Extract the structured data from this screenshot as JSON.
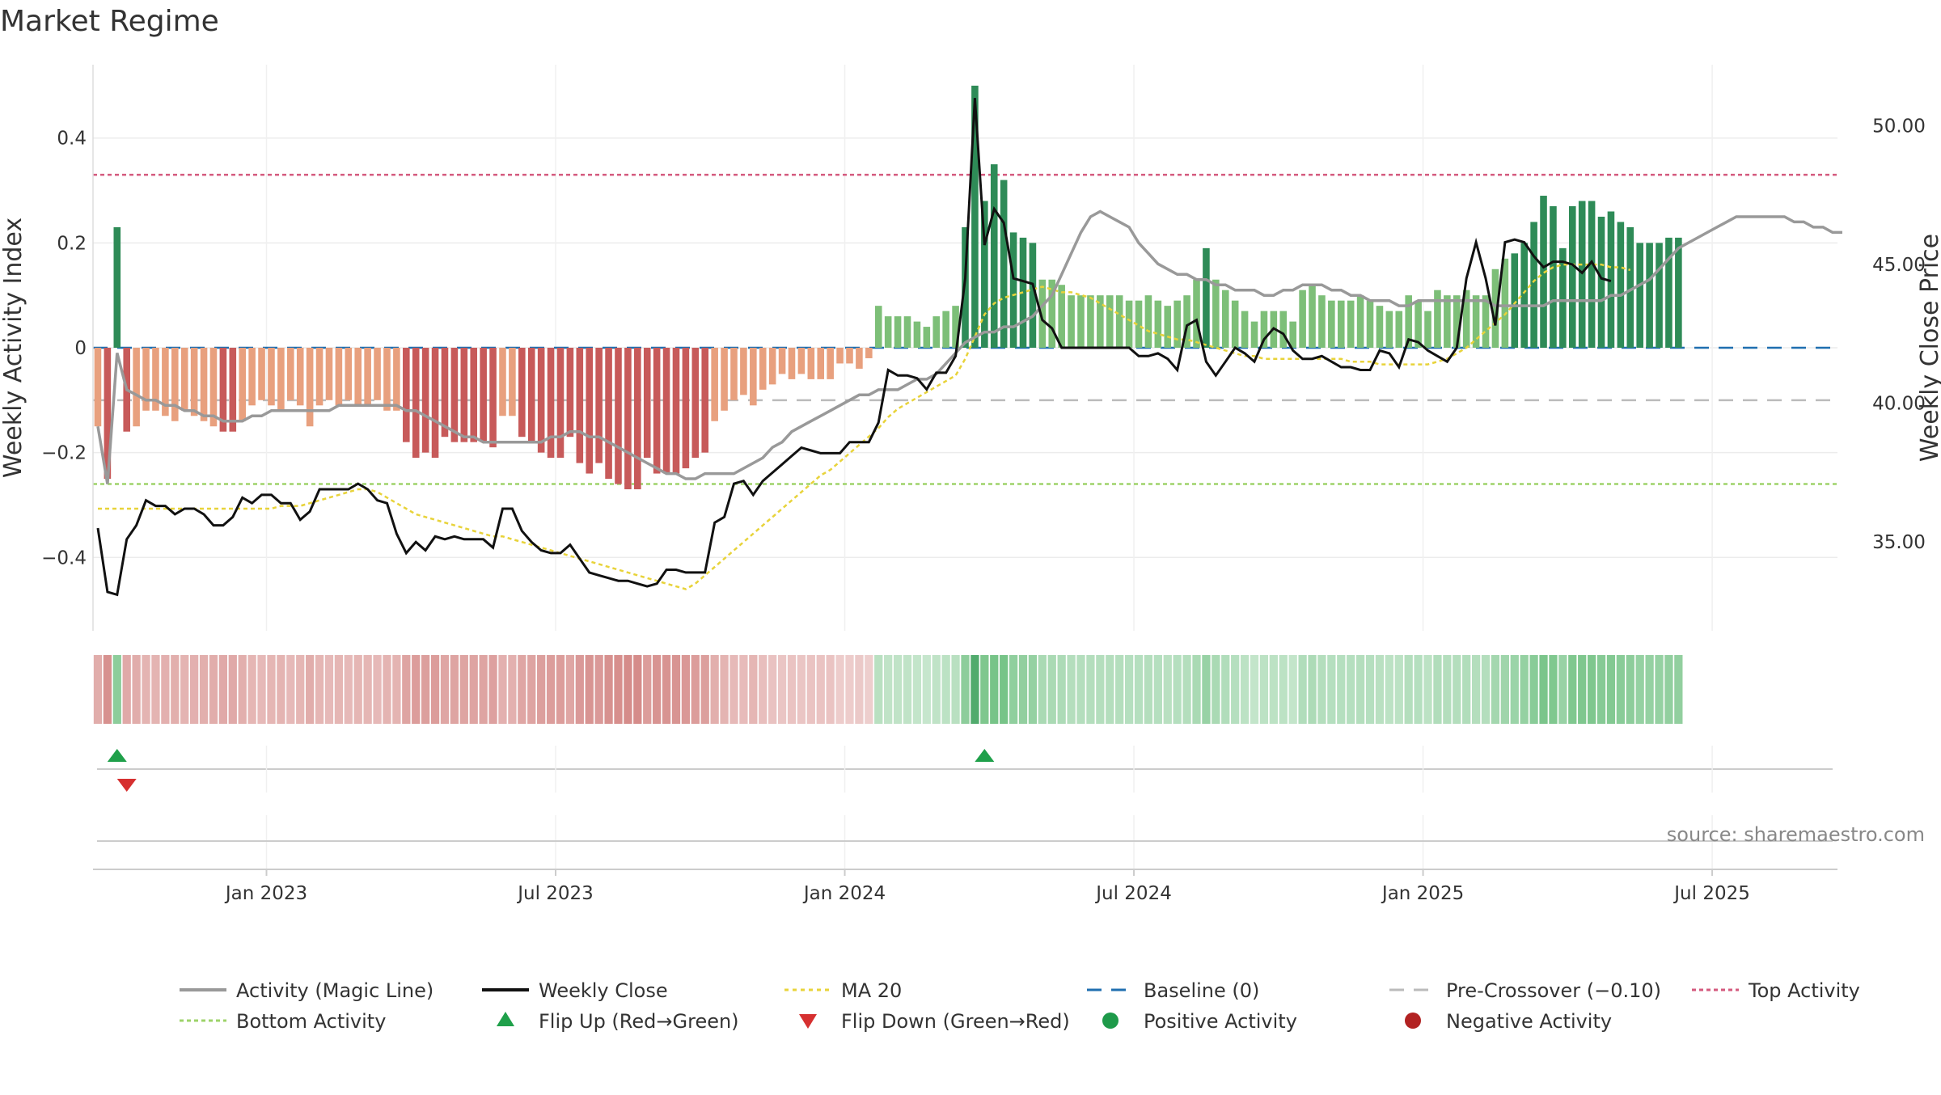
{
  "chart_data": {
    "type": "bar",
    "title": "Market Regime",
    "ylabel_left": "Weekly Activity Index",
    "ylabel_right": "Weekly Close Price",
    "yticks_left": [
      "0.4",
      "0.2",
      "0",
      "−0.2",
      "−0.4"
    ],
    "yticks_left_values": [
      0.4,
      0.2,
      0,
      -0.2,
      -0.4
    ],
    "ylim_left": [
      -0.54,
      0.54
    ],
    "yticks_right": [
      "50.00",
      "45.00",
      "40.00",
      "35.00"
    ],
    "yticks_right_values": [
      50,
      45,
      40,
      35
    ],
    "ylim_right": [
      31.8,
      52.2
    ],
    "xticks": [
      "Jan 2023",
      "Jul 2023",
      "Jan 2024",
      "Jul 2024",
      "Jan 2025",
      "Jul 2025"
    ],
    "xticks_weeks": [
      17.5,
      47.5,
      77.5,
      107.5,
      137.5,
      167.5
    ],
    "x_range_weeks": [
      -0.5,
      180.5
    ],
    "grid": true,
    "legend_position": "bottom",
    "source": "source: sharemaestro.com",
    "reference_lines": {
      "top_activity": 0.33,
      "bottom_activity": -0.26,
      "pre_crossover": -0.1,
      "baseline": 0
    },
    "series": [
      {
        "name": "Activity (Magic Line)",
        "role": "magic",
        "color": "#999999",
        "values": [
          -0.15,
          -0.26,
          -0.01,
          -0.08,
          -0.09,
          -0.1,
          -0.1,
          -0.11,
          -0.11,
          -0.12,
          -0.12,
          -0.13,
          -0.13,
          -0.14,
          -0.14,
          -0.14,
          -0.13,
          -0.13,
          -0.12,
          -0.12,
          -0.12,
          -0.12,
          -0.12,
          -0.12,
          -0.12,
          -0.11,
          -0.11,
          -0.11,
          -0.11,
          -0.11,
          -0.11,
          -0.11,
          -0.12,
          -0.12,
          -0.13,
          -0.14,
          -0.15,
          -0.16,
          -0.17,
          -0.17,
          -0.18,
          -0.18,
          -0.18,
          -0.18,
          -0.18,
          -0.18,
          -0.18,
          -0.17,
          -0.17,
          -0.16,
          -0.16,
          -0.17,
          -0.17,
          -0.18,
          -0.19,
          -0.2,
          -0.21,
          -0.22,
          -0.23,
          -0.24,
          -0.24,
          -0.25,
          -0.25,
          -0.24,
          -0.24,
          -0.24,
          -0.24,
          -0.23,
          -0.22,
          -0.21,
          -0.19,
          -0.18,
          -0.16,
          -0.15,
          -0.14,
          -0.13,
          -0.12,
          -0.11,
          -0.1,
          -0.09,
          -0.09,
          -0.08,
          -0.08,
          -0.08,
          -0.07,
          -0.06,
          -0.06,
          -0.05,
          -0.03,
          -0.01,
          0.01,
          0.02,
          0.03,
          0.03,
          0.04,
          0.04,
          0.05,
          0.06,
          0.08,
          0.1,
          0.14,
          0.18,
          0.22,
          0.25,
          0.26,
          0.25,
          0.24,
          0.23,
          0.2,
          0.18,
          0.16,
          0.15,
          0.14,
          0.14,
          0.13,
          0.13,
          0.12,
          0.12,
          0.11,
          0.11,
          0.11,
          0.1,
          0.1,
          0.11,
          0.11,
          0.12,
          0.12,
          0.12,
          0.11,
          0.11,
          0.1,
          0.1,
          0.09,
          0.09,
          0.09,
          0.08,
          0.08,
          0.09,
          0.09,
          0.09,
          0.09,
          0.09,
          0.09,
          0.09,
          0.09,
          0.08,
          0.08,
          0.08,
          0.08,
          0.08,
          0.08,
          0.09,
          0.09,
          0.09,
          0.09,
          0.09,
          0.09,
          0.1,
          0.1,
          0.11,
          0.12,
          0.13,
          0.15,
          0.17,
          0.19,
          0.2,
          0.21,
          0.22,
          0.23,
          0.24,
          0.25,
          0.25,
          0.25,
          0.25,
          0.25,
          0.25,
          0.24,
          0.24,
          0.23,
          0.23,
          0.22,
          0.22
        ]
      },
      {
        "name": "Weekly Close",
        "role": "close",
        "color": "#111111",
        "values": [
          35.5,
          33.2,
          33.1,
          35.1,
          35.6,
          36.5,
          36.3,
          36.3,
          36.0,
          36.2,
          36.2,
          36.0,
          35.6,
          35.6,
          35.9,
          36.6,
          36.4,
          36.7,
          36.7,
          36.4,
          36.4,
          35.8,
          36.1,
          36.9,
          36.9,
          36.9,
          36.9,
          37.1,
          36.9,
          36.5,
          36.4,
          35.3,
          34.6,
          35.0,
          34.7,
          35.2,
          35.1,
          35.2,
          35.1,
          35.1,
          35.1,
          34.8,
          36.2,
          36.2,
          35.4,
          35.0,
          34.7,
          34.6,
          34.6,
          34.9,
          34.4,
          33.9,
          33.8,
          33.7,
          33.6,
          33.6,
          33.5,
          33.4,
          33.5,
          34.0,
          34.0,
          33.9,
          33.9,
          33.9,
          35.7,
          35.9,
          37.1,
          37.2,
          36.7,
          37.2,
          37.5,
          37.8,
          38.1,
          38.4,
          38.3,
          38.2,
          38.2,
          38.2,
          38.6,
          38.6,
          38.6,
          39.3,
          41.2,
          41.0,
          41.0,
          40.9,
          40.5,
          41.1,
          41.1,
          41.7,
          44.5,
          51.0,
          45.7,
          47.0,
          46.5,
          44.5,
          44.4,
          44.3,
          43.0,
          42.7,
          42.0,
          42.0,
          42.0,
          42.0,
          42.0,
          42.0,
          42.0,
          42.0,
          41.7,
          41.7,
          41.8,
          41.6,
          41.2,
          42.8,
          43.0,
          41.5,
          41.0,
          41.5,
          42.0,
          41.8,
          41.5,
          42.3,
          42.7,
          42.5,
          41.9,
          41.6,
          41.6,
          41.7,
          41.5,
          41.3,
          41.3,
          41.2,
          41.2,
          41.9,
          41.8,
          41.3,
          42.3,
          42.2,
          41.9,
          41.7,
          41.5,
          42.0,
          44.5,
          45.8,
          44.5,
          42.8,
          45.8,
          45.9,
          45.8,
          45.3,
          44.9,
          45.1,
          45.1,
          45.0,
          44.7,
          45.1,
          44.5,
          44.4
        ]
      },
      {
        "name": "MA 20",
        "role": "ma",
        "color": "#e8d33a",
        "values": [
          36.2,
          36.2,
          36.2,
          36.2,
          36.2,
          36.2,
          36.2,
          36.2,
          36.2,
          36.2,
          36.2,
          36.2,
          36.2,
          36.2,
          36.2,
          36.2,
          36.2,
          36.2,
          36.2,
          36.3,
          36.3,
          36.3,
          36.4,
          36.5,
          36.6,
          36.7,
          36.8,
          36.9,
          36.9,
          36.8,
          36.6,
          36.4,
          36.2,
          36.0,
          35.9,
          35.8,
          35.7,
          35.6,
          35.5,
          35.4,
          35.3,
          35.2,
          35.2,
          35.1,
          35.0,
          34.9,
          34.8,
          34.7,
          34.6,
          34.5,
          34.4,
          34.3,
          34.2,
          34.1,
          34.0,
          33.9,
          33.8,
          33.7,
          33.6,
          33.5,
          33.4,
          33.3,
          33.5,
          33.8,
          34.1,
          34.4,
          34.7,
          35.0,
          35.3,
          35.6,
          35.9,
          36.2,
          36.5,
          36.8,
          37.1,
          37.4,
          37.6,
          37.9,
          38.2,
          38.5,
          38.8,
          39.1,
          39.5,
          39.8,
          40.0,
          40.2,
          40.4,
          40.6,
          40.8,
          41.0,
          41.6,
          42.4,
          43.2,
          43.6,
          43.8,
          43.9,
          44.0,
          44.1,
          44.2,
          44.1,
          44.0,
          44.0,
          43.9,
          43.8,
          43.6,
          43.4,
          43.2,
          43.0,
          42.8,
          42.6,
          42.5,
          42.4,
          42.3,
          42.3,
          42.2,
          42.1,
          42.0,
          41.9,
          41.8,
          41.7,
          41.7,
          41.6,
          41.6,
          41.6,
          41.6,
          41.6,
          41.6,
          41.6,
          41.6,
          41.6,
          41.5,
          41.5,
          41.5,
          41.4,
          41.4,
          41.4,
          41.4,
          41.4,
          41.4,
          41.5,
          41.6,
          41.8,
          42.0,
          42.3,
          42.6,
          42.9,
          43.2,
          43.6,
          44.0,
          44.4,
          44.7,
          44.9,
          45.0,
          45.0,
          45.0,
          45.0,
          45.0,
          44.9,
          44.9,
          44.8
        ]
      },
      {
        "name": "Weekly Activity Index",
        "role": "bars",
        "values": [
          -0.15,
          -0.25,
          0.23,
          -0.16,
          -0.15,
          -0.12,
          -0.12,
          -0.13,
          -0.14,
          -0.12,
          -0.13,
          -0.14,
          -0.15,
          -0.16,
          -0.16,
          -0.14,
          -0.11,
          -0.1,
          -0.11,
          -0.12,
          -0.1,
          -0.11,
          -0.15,
          -0.11,
          -0.1,
          -0.11,
          -0.1,
          -0.11,
          -0.11,
          -0.1,
          -0.12,
          -0.12,
          -0.18,
          -0.21,
          -0.2,
          -0.21,
          -0.17,
          -0.18,
          -0.18,
          -0.18,
          -0.18,
          -0.19,
          -0.13,
          -0.13,
          -0.17,
          -0.18,
          -0.2,
          -0.21,
          -0.21,
          -0.17,
          -0.22,
          -0.24,
          -0.22,
          -0.25,
          -0.26,
          -0.27,
          -0.27,
          -0.21,
          -0.24,
          -0.24,
          -0.24,
          -0.23,
          -0.21,
          -0.2,
          -0.14,
          -0.12,
          -0.1,
          -0.09,
          -0.11,
          -0.08,
          -0.07,
          -0.05,
          -0.06,
          -0.05,
          -0.06,
          -0.06,
          -0.06,
          -0.03,
          -0.03,
          -0.04,
          -0.02,
          0.08,
          0.06,
          0.06,
          0.06,
          0.05,
          0.04,
          0.06,
          0.07,
          0.08,
          0.23,
          0.5,
          0.28,
          0.35,
          0.32,
          0.22,
          0.21,
          0.2,
          0.13,
          0.13,
          0.12,
          0.1,
          0.1,
          0.1,
          0.1,
          0.1,
          0.1,
          0.09,
          0.09,
          0.1,
          0.09,
          0.08,
          0.09,
          0.1,
          0.13,
          0.19,
          0.13,
          0.11,
          0.09,
          0.07,
          0.05,
          0.07,
          0.07,
          0.07,
          0.05,
          0.11,
          0.12,
          0.1,
          0.09,
          0.09,
          0.09,
          0.1,
          0.09,
          0.08,
          0.07,
          0.07,
          0.1,
          0.09,
          0.07,
          0.11,
          0.1,
          0.1,
          0.11,
          0.1,
          0.1,
          0.15,
          0.17,
          0.18,
          0.2,
          0.24,
          0.29,
          0.27,
          0.19,
          0.27,
          0.28,
          0.28,
          0.25,
          0.26,
          0.24,
          0.23,
          0.2,
          0.2,
          0.2,
          0.21,
          0.21
        ]
      }
    ],
    "flip_up_weeks": [
      2,
      92
    ],
    "flip_down_weeks": [
      3
    ]
  },
  "legend": {
    "magic": "Activity (Magic Line)",
    "close": "Weekly Close",
    "ma": "MA 20",
    "baseline": "Baseline (0)",
    "pre": "Pre-Crossover (−0.10)",
    "top": "Top Activity",
    "bottom": "Bottom Activity",
    "flipup": "Flip Up (Red→Green)",
    "flipdown": "Flip Down (Green→Red)",
    "pos": "Positive Activity",
    "neg": "Negative Activity"
  },
  "colors": {
    "magic": "#999999",
    "close": "#111111",
    "ma": "#e8d33a",
    "baseline": "#1f6fb0",
    "pre": "#bbbbbb",
    "top": "#d45a7e",
    "bottom": "#9ed36a",
    "flip_up": "#1fa04a",
    "flip_down": "#d63030",
    "positive": "#1e9a4a",
    "negative": "#b22222"
  }
}
